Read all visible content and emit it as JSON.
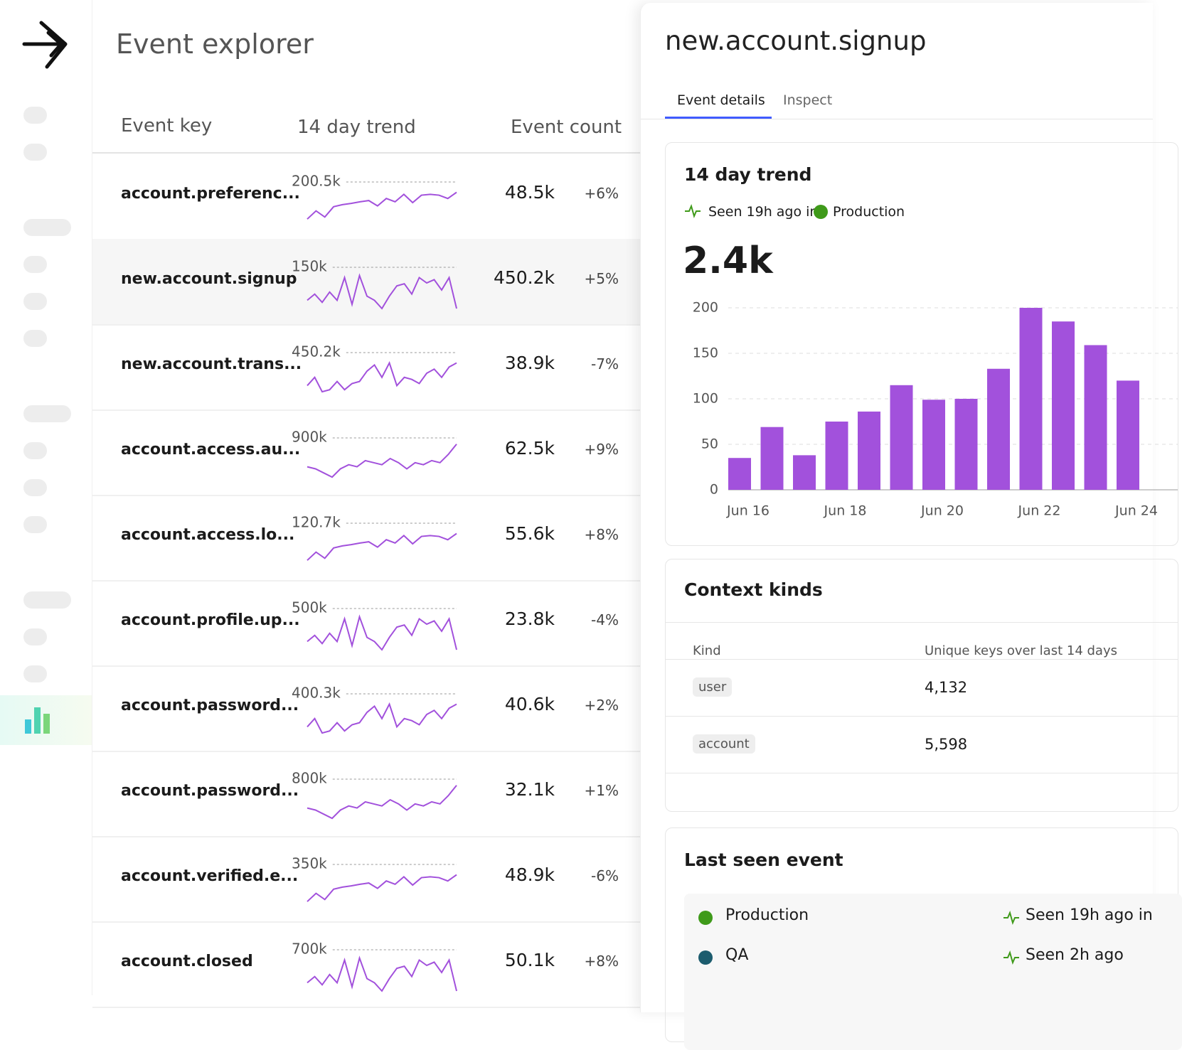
{
  "title": "Event explorer",
  "table": {
    "columns": [
      "Event key",
      "14 day trend",
      "Event count"
    ],
    "rows": [
      {
        "key": "account.preferenc...",
        "trend_label": "200.5k",
        "trend": [
          10,
          30,
          15,
          40,
          45,
          48,
          52,
          55,
          42,
          60,
          52,
          70,
          50,
          68,
          70,
          68,
          60,
          75
        ],
        "count": "48.5k",
        "change": "+6%"
      },
      {
        "key": "new.account.signup",
        "trend_label": "150k",
        "trend": [
          20,
          35,
          15,
          40,
          20,
          75,
          10,
          80,
          30,
          20,
          0,
          30,
          55,
          60,
          35,
          75,
          62,
          70,
          45,
          75,
          0
        ],
        "count": "450.2k",
        "change": "+5%"
      },
      {
        "key": "new.account.trans...",
        "trend_label": "450.2k",
        "trend": [
          20,
          40,
          5,
          10,
          30,
          10,
          25,
          30,
          55,
          70,
          40,
          75,
          20,
          40,
          35,
          25,
          50,
          60,
          40,
          65,
          75
        ],
        "count": "38.9k",
        "change": "-7%"
      },
      {
        "key": "account.access.au...",
        "trend_label": "900k",
        "trend": [
          30,
          25,
          15,
          5,
          25,
          35,
          30,
          45,
          40,
          35,
          50,
          40,
          25,
          40,
          35,
          45,
          40,
          60,
          85
        ],
        "count": "62.5k",
        "change": "+9%"
      },
      {
        "key": "account.access.lo...",
        "trend_label": "120.7k",
        "trend": [
          10,
          30,
          15,
          40,
          45,
          48,
          52,
          55,
          42,
          60,
          52,
          70,
          50,
          68,
          70,
          68,
          60,
          75
        ],
        "count": "55.6k",
        "change": "+8%"
      },
      {
        "key": "account.profile.up...",
        "trend_label": "500k",
        "trend": [
          20,
          35,
          15,
          40,
          20,
          75,
          10,
          80,
          30,
          20,
          0,
          30,
          55,
          60,
          35,
          75,
          62,
          70,
          45,
          75,
          0
        ],
        "count": "23.8k",
        "change": "-4%"
      },
      {
        "key": "account.password...",
        "trend_label": "400.3k",
        "trend": [
          20,
          40,
          5,
          10,
          30,
          10,
          25,
          30,
          55,
          70,
          40,
          75,
          20,
          40,
          35,
          25,
          50,
          60,
          40,
          65,
          75
        ],
        "count": "40.6k",
        "change": "+2%"
      },
      {
        "key": "account.password...",
        "trend_label": "800k",
        "trend": [
          30,
          25,
          15,
          5,
          25,
          35,
          30,
          45,
          40,
          35,
          50,
          40,
          25,
          40,
          35,
          45,
          40,
          60,
          85
        ],
        "count": "32.1k",
        "change": "+1%"
      },
      {
        "key": "account.verified.e...",
        "trend_label": "350k",
        "trend": [
          10,
          30,
          15,
          40,
          45,
          48,
          52,
          55,
          42,
          60,
          52,
          70,
          50,
          68,
          70,
          68,
          60,
          75
        ],
        "count": "48.9k",
        "change": "-6%"
      },
      {
        "key": "account.closed",
        "trend_label": "700k",
        "trend": [
          20,
          35,
          15,
          40,
          20,
          75,
          10,
          80,
          30,
          20,
          0,
          30,
          55,
          60,
          35,
          75,
          62,
          70,
          45,
          75,
          0
        ],
        "count": "50.1k",
        "change": "+8%"
      }
    ]
  },
  "detail": {
    "title": "new.account.signup",
    "tabs": [
      "Event details",
      "Inspect"
    ],
    "trend_card": {
      "title": "14 day trend",
      "seen": "Seen 19h ago in",
      "environment": "Production",
      "total": "2.4k",
      "chart_data": {
        "type": "bar",
        "categories": [
          "Jun 16",
          null,
          null,
          "Jun 18",
          null,
          null,
          "Jun 20",
          null,
          null,
          "Jun 22",
          null,
          null,
          "Jun 24"
        ],
        "values": [
          35,
          69,
          38,
          75,
          86,
          115,
          99,
          100,
          133,
          200,
          185,
          159,
          120
        ],
        "color": "#a251dc",
        "ylim": [
          0,
          200
        ],
        "yticks": [
          0,
          50,
          100,
          150,
          200
        ],
        "grid": true
      }
    },
    "context": {
      "title": "Context kinds",
      "columns": [
        "Kind",
        "Unique keys over last 14 days"
      ],
      "rows": [
        [
          "user",
          "4,132"
        ],
        [
          "account",
          "5,598"
        ]
      ]
    },
    "last_seen": {
      "title": "Last seen event",
      "rows": [
        {
          "environment": "Production",
          "color": "#3f9a1a",
          "seen": "Seen 19h ago in"
        },
        {
          "environment": "QA",
          "color": "#1c5c6e",
          "seen": "Seen 2h ago"
        }
      ]
    }
  }
}
